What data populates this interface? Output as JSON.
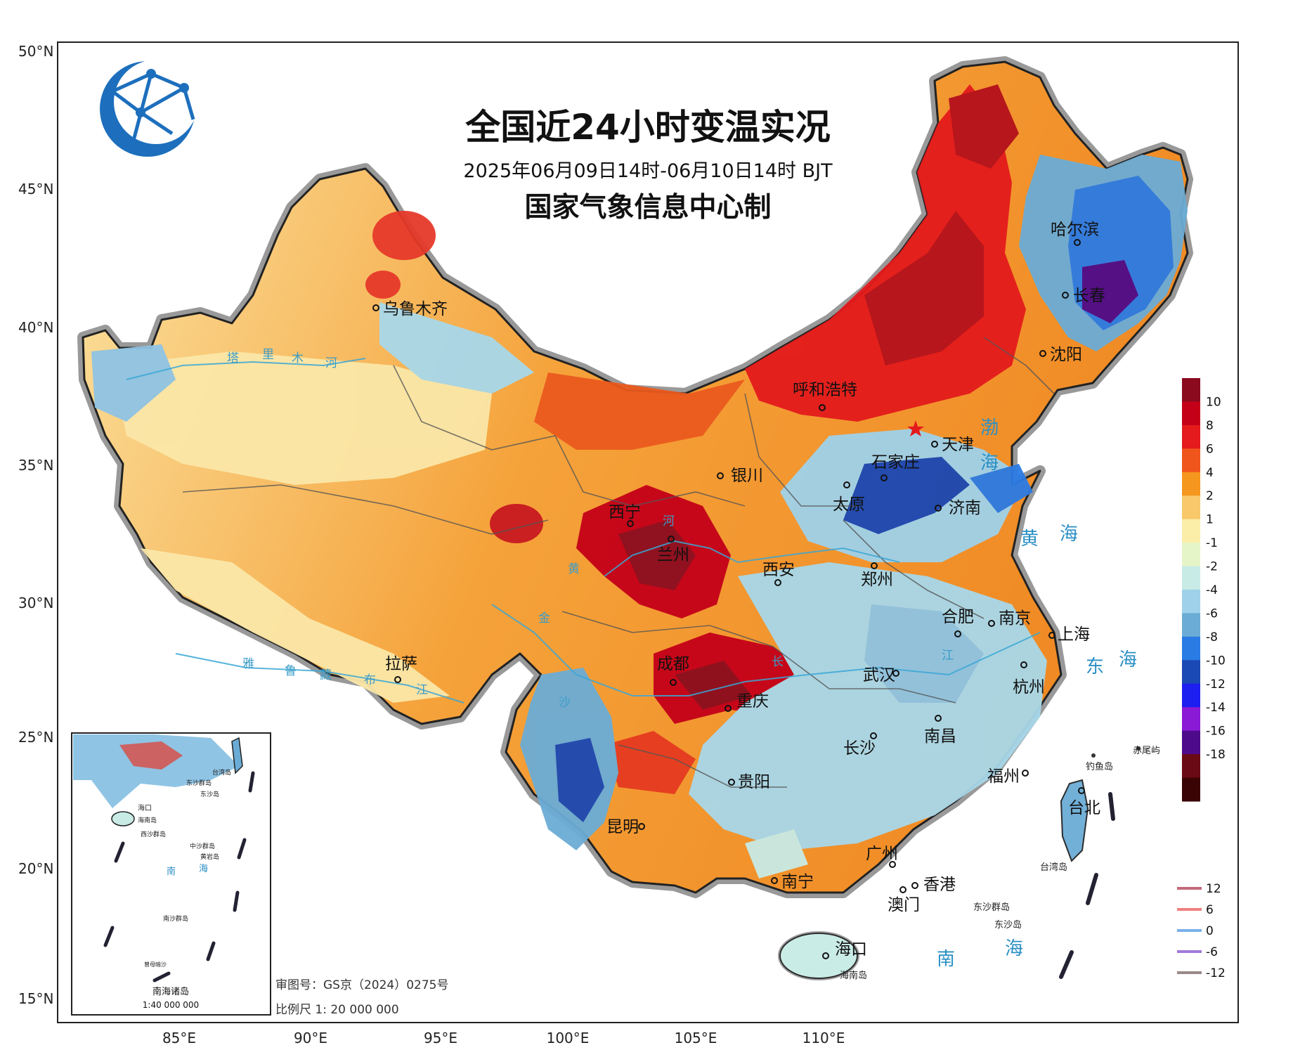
{
  "title": "全国近24小时变温实况",
  "subtitle": "2025年06月09日14时-06月10日14时 BJT",
  "producer": "国家气象信息中心制",
  "lat_ticks": [
    "50°N",
    "45°N",
    "40°N",
    "35°N",
    "30°N",
    "25°N",
    "20°N",
    "15°N"
  ],
  "lon_ticks": [
    "85°E",
    "90°E",
    "95°E",
    "100°E",
    "105°E",
    "110°E"
  ],
  "cities": [
    "乌鲁木齐",
    "哈尔滨",
    "长春",
    "沈阳",
    "呼和浩特",
    "天津",
    "银川",
    "石家庄",
    "太原",
    "济南",
    "西宁",
    "兰州",
    "西安",
    "郑州",
    "合肥",
    "南京",
    "上海",
    "拉萨",
    "成都",
    "重庆",
    "武汉",
    "杭州",
    "南昌",
    "长沙",
    "贵阳",
    "福州",
    "台北",
    "昆明",
    "广州",
    "南宁",
    "香港",
    "澳门",
    "海口"
  ],
  "seas": [
    "渤",
    "海",
    "黄",
    "海",
    "东",
    "海",
    "南",
    "海"
  ],
  "rivers": [
    "塔",
    "里",
    "木",
    "河",
    "雅",
    "鲁",
    "藏",
    "布",
    "江",
    "黄",
    "河",
    "长",
    "江",
    "金",
    "沙"
  ],
  "islands": [
    "钓鱼岛",
    "赤尾屿",
    "台湾岛",
    "东沙群岛",
    "东沙岛",
    "海南岛"
  ],
  "approval": "审图号：GS京（2024）0275号",
  "scale": "比例尺  1: 20 000 000",
  "inset": {
    "title": "南海诸岛",
    "scale": "1:40 000 000",
    "labels": [
      "台湾岛",
      "东沙群岛",
      "东沙岛",
      "海口",
      "海南岛",
      "西沙群岛",
      "中沙群岛",
      "黄岩岛",
      "南",
      "海",
      "南沙群岛",
      "曾母暗沙"
    ]
  },
  "color_legend": {
    "labels": [
      "10",
      "8",
      "6",
      "4",
      "2",
      "1",
      "-1",
      "-2",
      "-4",
      "-6",
      "-8",
      "-10",
      "-12",
      "-14",
      "-16",
      "-18"
    ],
    "colors": [
      "#8b0a1e",
      "#c40018",
      "#e41a1c",
      "#f0561c",
      "#f5961e",
      "#f8c86a",
      "#fbeea8",
      "#e6f5c8",
      "#c8ebe6",
      "#9fd2ea",
      "#6bacd6",
      "#2b7be4",
      "#1a48b4",
      "#1d1ef0",
      "#8a1ad6",
      "#4d0a8a",
      "#6a0a14",
      "#3a0404"
    ]
  },
  "isoline_legend": {
    "labels": [
      "12",
      "6",
      "0",
      "-6",
      "-12"
    ],
    "colors": [
      "#c46a7a",
      "#f08080",
      "#7ab0ea",
      "#a07ad8",
      "#9a8a8a"
    ]
  }
}
